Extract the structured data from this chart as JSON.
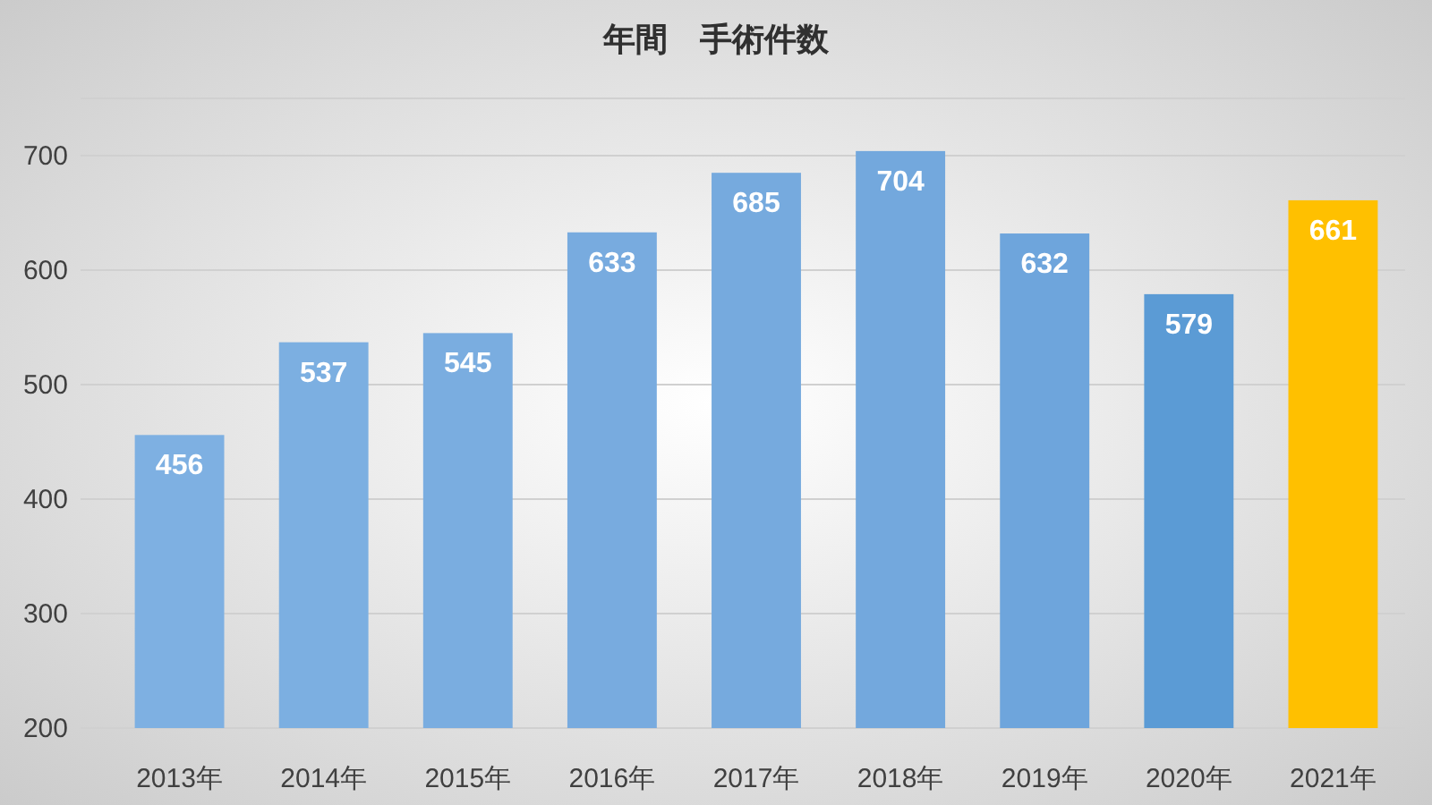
{
  "chart_data": {
    "type": "bar",
    "title": "年間　手術件数",
    "categories": [
      "2013年",
      "2014年",
      "2015年",
      "2016年",
      "2017年",
      "2018年",
      "2019年",
      "2020年",
      "2021年"
    ],
    "values": [
      456,
      537,
      545,
      633,
      685,
      704,
      632,
      579,
      661
    ],
    "colors": [
      "#7eb0e2",
      "#7cafe1",
      "#7aade0",
      "#78abdf",
      "#76aade",
      "#73a8dd",
      "#6ea5dc",
      "#5b9bd5",
      "#ffc000"
    ],
    "ylim": [
      200,
      750
    ],
    "yticks": [
      200,
      300,
      400,
      500,
      600,
      700,
      {
        "value": 750,
        "label": null
      }
    ],
    "grid": "y",
    "data_labels": true
  }
}
